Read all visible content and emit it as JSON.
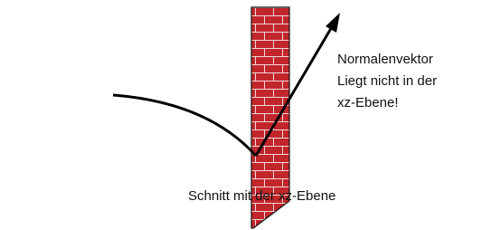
{
  "annotations": {
    "normal_vector": {
      "lines": [
        "Normalenvektor",
        "Liegt nicht in der",
        "xz-Ebene!"
      ]
    },
    "intersection": {
      "text": "Schnitt mit der xz-Ebene"
    }
  }
}
